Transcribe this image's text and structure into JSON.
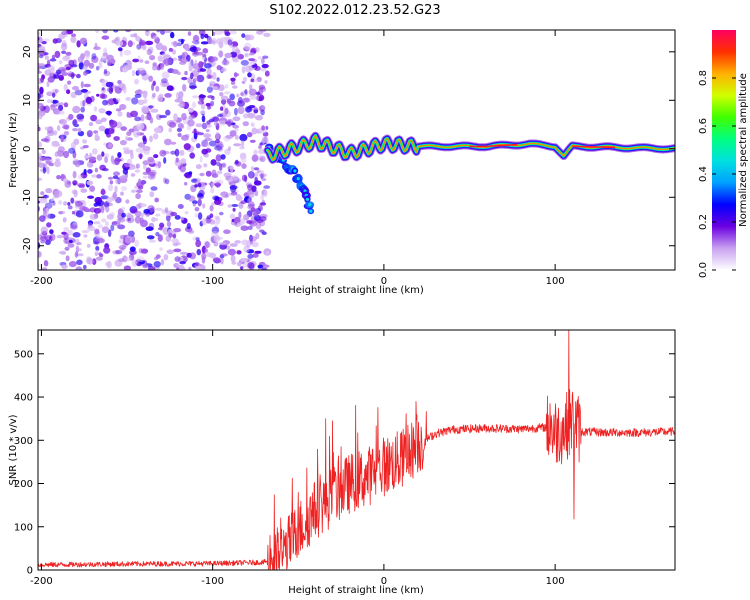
{
  "title": "S102.2022.012.23.52.G23",
  "chart_data": [
    {
      "type": "heatmap",
      "title": "S102.2022.012.23.52.G23",
      "xlabel": "Height of straight line (km)",
      "ylabel": "Frequency (Hz)",
      "xlim": [
        -202,
        170
      ],
      "ylim": [
        -25,
        24.5
      ],
      "xticks": [
        -200,
        -100,
        0,
        100
      ],
      "yticks": [
        -20,
        -10,
        0,
        10,
        20
      ],
      "colorbar": {
        "label": "Normalized spectral amplitude",
        "range": [
          0.0,
          1.0
        ],
        "ticks": [
          0.0,
          0.2,
          0.4,
          0.6,
          0.8
        ],
        "colormap": [
          "#ffffff",
          "#c8a0f0",
          "#6a00e0",
          "#0000ff",
          "#00a0ff",
          "#00e0e0",
          "#00ff80",
          "#40ff00",
          "#d0ff00",
          "#ffb000",
          "#ff3000",
          "#ff0060"
        ]
      },
      "features": {
        "noise_region_x": [
          -200,
          -68
        ],
        "noise_freq_range": [
          -25,
          24.5
        ],
        "noise_amplitude": 0.15,
        "dispersed_branch": [
          {
            "x": -67,
            "f": 0.0
          },
          {
            "x": -60,
            "f": -2.5
          },
          {
            "x": -52,
            "f": -5.0
          },
          {
            "x": -46,
            "f": -9.0
          },
          {
            "x": -42,
            "f": -13.5
          }
        ],
        "tone_line": [
          {
            "x": -68,
            "f": -1.5
          },
          {
            "x": -40,
            "f": 1.5
          },
          {
            "x": -20,
            "f": -1.0
          },
          {
            "x": 0,
            "f": 1.0
          },
          {
            "x": 20,
            "f": 0.5
          },
          {
            "x": 60,
            "f": 0.5
          },
          {
            "x": 85,
            "f": 1.0
          },
          {
            "x": 100,
            "f": 0.5
          },
          {
            "x": 105,
            "f": -1.5
          },
          {
            "x": 110,
            "f": 0.5
          },
          {
            "x": 170,
            "f": 0.0
          }
        ],
        "tone_peak_amplitude": 0.95
      }
    },
    {
      "type": "line",
      "xlabel": "Height of straight line (km)",
      "ylabel": "SNR (10 * v/v)",
      "xlim": [
        -202,
        170
      ],
      "ylim": [
        0,
        555
      ],
      "xticks": [
        -200,
        -100,
        0,
        100
      ],
      "yticks": [
        0,
        100,
        200,
        300,
        400,
        500
      ],
      "line_color": "#ee2222",
      "series": [
        {
          "values": [
            {
              "x": -202,
              "y": 12
            },
            {
              "x": -150,
              "y": 14
            },
            {
              "x": -100,
              "y": 15
            },
            {
              "x": -70,
              "y": 18
            },
            {
              "x": -60,
              "y": 35
            },
            {
              "x": -50,
              "y": 90
            },
            {
              "x": -40,
              "y": 140
            },
            {
              "x": -30,
              "y": 170
            },
            {
              "x": -20,
              "y": 200
            },
            {
              "x": -10,
              "y": 215
            },
            {
              "x": 0,
              "y": 240
            },
            {
              "x": 10,
              "y": 255
            },
            {
              "x": 20,
              "y": 290
            },
            {
              "x": 30,
              "y": 315
            },
            {
              "x": 40,
              "y": 325
            },
            {
              "x": 60,
              "y": 328
            },
            {
              "x": 80,
              "y": 326
            },
            {
              "x": 95,
              "y": 330
            },
            {
              "x": 100,
              "y": 320
            },
            {
              "x": 105,
              "y": 325
            },
            {
              "x": 110,
              "y": 350
            },
            {
              "x": 115,
              "y": 320
            },
            {
              "x": 130,
              "y": 318
            },
            {
              "x": 150,
              "y": 318
            },
            {
              "x": 170,
              "y": 320
            }
          ],
          "spikes": [
            {
              "x": -34,
              "y": 350
            },
            {
              "x": -30,
              "y": 345
            },
            {
              "x": -25,
              "y": 285
            },
            {
              "x": 14,
              "y": 335
            },
            {
              "x": 97,
              "y": 385
            },
            {
              "x": 108,
              "y": 555
            },
            {
              "x": 111,
              "y": 118
            }
          ]
        }
      ]
    }
  ]
}
